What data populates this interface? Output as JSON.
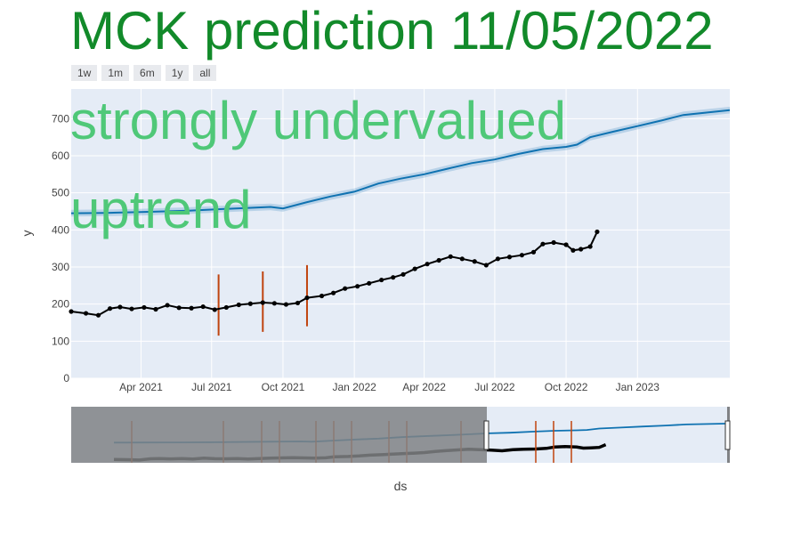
{
  "chart_data": {
    "type": "scatter",
    "title": "MCK prediction 11/05/2022",
    "xlabel": "ds",
    "ylabel": "y",
    "xlim": [
      "2021-01-01",
      "2023-04-30"
    ],
    "ylim": [
      0,
      780
    ],
    "x_ticks": [
      {
        "date": "2021-04-01",
        "label": "Apr 2021"
      },
      {
        "date": "2021-07-01",
        "label": "Jul 2021"
      },
      {
        "date": "2021-10-01",
        "label": "Oct 2021"
      },
      {
        "date": "2022-01-01",
        "label": "Jan 2022"
      },
      {
        "date": "2022-04-01",
        "label": "Apr 2022"
      },
      {
        "date": "2022-07-01",
        "label": "Jul 2022"
      },
      {
        "date": "2022-10-01",
        "label": "Oct 2022"
      },
      {
        "date": "2023-01-01",
        "label": "Jan 2023"
      }
    ],
    "y_ticks": [
      0,
      100,
      200,
      300,
      400,
      500,
      600,
      700
    ],
    "grid": true,
    "range_buttons": [
      "1w",
      "1m",
      "6m",
      "1y",
      "all"
    ],
    "annotations": [
      "strongly undervalued",
      "uptrend"
    ],
    "series": [
      {
        "role": "forecast",
        "color": "#1f77b4",
        "x": [
          "2021-01-01",
          "2021-02-15",
          "2021-04-01",
          "2021-06-01",
          "2021-08-01",
          "2021-09-15",
          "2021-10-01",
          "2021-11-01",
          "2021-12-01",
          "2022-01-01",
          "2022-02-01",
          "2022-03-01",
          "2022-04-01",
          "2022-05-01",
          "2022-06-01",
          "2022-07-01",
          "2022-08-01",
          "2022-09-01",
          "2022-10-01",
          "2022-10-15",
          "2022-11-01",
          "2022-12-01",
          "2023-01-01",
          "2023-02-01",
          "2023-03-01",
          "2023-04-30"
        ],
        "y": [
          445,
          446,
          448,
          452,
          458,
          462,
          458,
          475,
          490,
          503,
          525,
          538,
          550,
          565,
          580,
          590,
          605,
          618,
          624,
          630,
          650,
          665,
          680,
          695,
          710,
          723
        ]
      },
      {
        "role": "actual",
        "color": "#000000",
        "x": [
          "2021-01-01",
          "2021-01-20",
          "2021-02-05",
          "2021-02-20",
          "2021-03-05",
          "2021-03-20",
          "2021-04-05",
          "2021-04-20",
          "2021-05-05",
          "2021-05-20",
          "2021-06-05",
          "2021-06-20",
          "2021-07-05",
          "2021-07-20",
          "2021-08-05",
          "2021-08-20",
          "2021-09-05",
          "2021-09-20",
          "2021-10-05",
          "2021-10-20",
          "2021-11-01",
          "2021-11-20",
          "2021-12-05",
          "2021-12-20",
          "2022-01-05",
          "2022-01-20",
          "2022-02-05",
          "2022-02-20",
          "2022-03-05",
          "2022-03-20",
          "2022-04-05",
          "2022-04-20",
          "2022-05-05",
          "2022-05-20",
          "2022-06-05",
          "2022-06-20",
          "2022-07-05",
          "2022-07-20",
          "2022-08-05",
          "2022-08-20",
          "2022-09-01",
          "2022-09-15",
          "2022-10-01",
          "2022-10-10",
          "2022-10-20",
          "2022-11-01",
          "2022-11-10"
        ],
        "y": [
          180,
          175,
          170,
          188,
          192,
          187,
          191,
          186,
          197,
          190,
          189,
          193,
          185,
          191,
          198,
          201,
          204,
          202,
          199,
          203,
          217,
          222,
          230,
          242,
          248,
          256,
          265,
          272,
          280,
          295,
          308,
          318,
          328,
          322,
          315,
          305,
          322,
          327,
          332,
          340,
          362,
          366,
          360,
          345,
          348,
          355,
          395
        ]
      }
    ],
    "changepoints": [
      {
        "x": "2021-07-10",
        "ylow": 115,
        "yhigh": 280
      },
      {
        "x": "2021-09-05",
        "ylow": 125,
        "yhigh": 288
      },
      {
        "x": "2021-11-01",
        "ylow": 140,
        "yhigh": 305
      }
    ]
  }
}
